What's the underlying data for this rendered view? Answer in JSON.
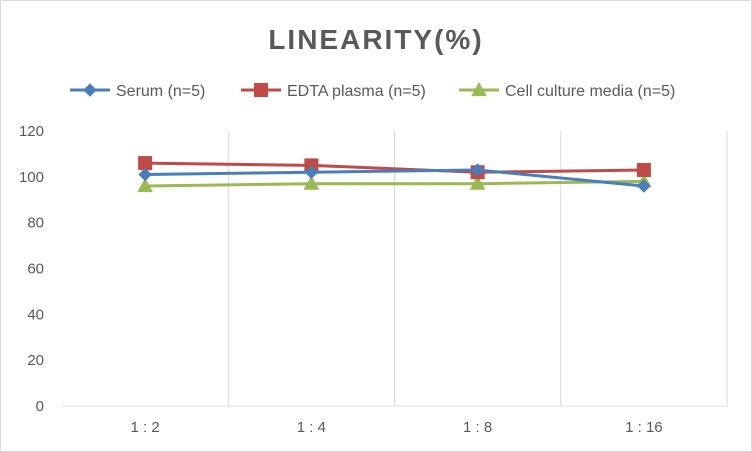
{
  "chart_data": {
    "type": "line",
    "title": "LINEARITY(%)",
    "xlabel": "",
    "ylabel": "",
    "categories": [
      "1:2",
      "1:4",
      "1:8",
      "1:16"
    ],
    "ylim": [
      0,
      120
    ],
    "yticks": [
      0,
      20,
      40,
      60,
      80,
      100,
      120
    ],
    "grid": "vertical",
    "legend_position": "top",
    "series": [
      {
        "name": "Serum (n=5)",
        "values": [
          101,
          102,
          103,
          96
        ],
        "color": "#4a7ebb",
        "marker": "diamond"
      },
      {
        "name": "EDTA plasma (n=5)",
        "values": [
          106,
          105,
          102,
          103
        ],
        "color": "#be4b48",
        "marker": "square"
      },
      {
        "name": "Cell culture media (n=5)",
        "values": [
          96,
          97,
          97,
          98
        ],
        "color": "#98b954",
        "marker": "triangle"
      }
    ]
  }
}
